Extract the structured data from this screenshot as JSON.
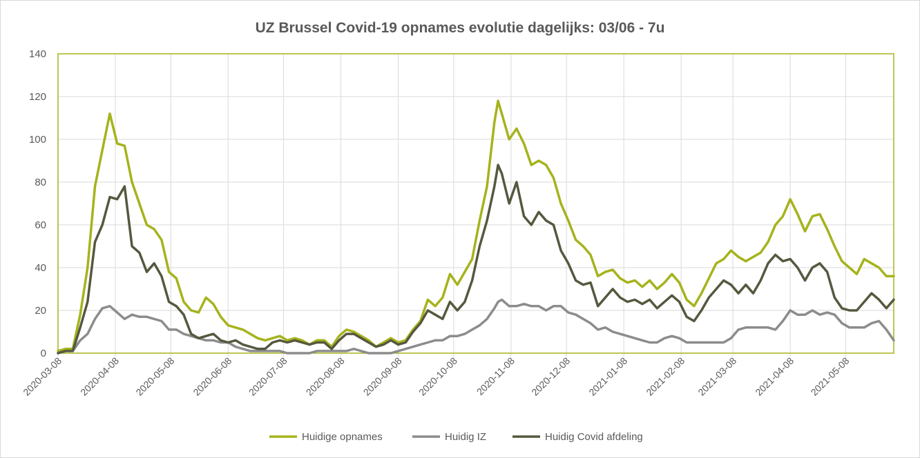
{
  "colors": {
    "text": "#595959",
    "grid": "#D9D9D9",
    "plot_border": "#A5B31C"
  },
  "chart_data": {
    "type": "line",
    "title": "UZ Brussel Covid-19 opnames evolutie dagelijks: 03/06 - 7u",
    "xlim": [
      "2020-03-08",
      "2021-06-03"
    ],
    "ylim": [
      0,
      140
    ],
    "yticks": [
      0,
      20,
      40,
      60,
      80,
      100,
      120,
      140
    ],
    "xticks": [
      "2020-03-08",
      "2020-04-08",
      "2020-05-08",
      "2020-06-08",
      "2020-07-08",
      "2020-08-08",
      "2020-09-08",
      "2020-10-08",
      "2020-11-08",
      "2020-12-08",
      "2021-01-08",
      "2021-02-08",
      "2021-03-08",
      "2021-04-08",
      "2021-05-08"
    ],
    "grid": true,
    "legend": "bottom",
    "x": [
      "2020-03-08",
      "2020-03-12",
      "2020-03-16",
      "2020-03-20",
      "2020-03-24",
      "2020-03-28",
      "2020-04-01",
      "2020-04-05",
      "2020-04-09",
      "2020-04-13",
      "2020-04-17",
      "2020-04-21",
      "2020-04-25",
      "2020-04-29",
      "2020-05-03",
      "2020-05-07",
      "2020-05-11",
      "2020-05-15",
      "2020-05-19",
      "2020-05-23",
      "2020-05-27",
      "2020-05-31",
      "2020-06-04",
      "2020-06-08",
      "2020-06-12",
      "2020-06-16",
      "2020-06-20",
      "2020-06-24",
      "2020-06-28",
      "2020-07-02",
      "2020-07-06",
      "2020-07-10",
      "2020-07-14",
      "2020-07-18",
      "2020-07-22",
      "2020-07-26",
      "2020-07-30",
      "2020-08-03",
      "2020-08-07",
      "2020-08-11",
      "2020-08-15",
      "2020-08-19",
      "2020-08-23",
      "2020-08-27",
      "2020-08-31",
      "2020-09-04",
      "2020-09-08",
      "2020-09-12",
      "2020-09-16",
      "2020-09-20",
      "2020-09-24",
      "2020-09-28",
      "2020-10-02",
      "2020-10-06",
      "2020-10-10",
      "2020-10-14",
      "2020-10-18",
      "2020-10-22",
      "2020-10-26",
      "2020-10-30",
      "2020-11-01",
      "2020-11-03",
      "2020-11-07",
      "2020-11-11",
      "2020-11-15",
      "2020-11-19",
      "2020-11-23",
      "2020-11-27",
      "2020-12-01",
      "2020-12-05",
      "2020-12-09",
      "2020-12-13",
      "2020-12-17",
      "2020-12-21",
      "2020-12-25",
      "2020-12-29",
      "2021-01-02",
      "2021-01-06",
      "2021-01-10",
      "2021-01-14",
      "2021-01-18",
      "2021-01-22",
      "2021-01-26",
      "2021-01-30",
      "2021-02-03",
      "2021-02-07",
      "2021-02-11",
      "2021-02-15",
      "2021-02-19",
      "2021-02-23",
      "2021-02-27",
      "2021-03-03",
      "2021-03-07",
      "2021-03-11",
      "2021-03-15",
      "2021-03-19",
      "2021-03-23",
      "2021-03-27",
      "2021-03-31",
      "2021-04-04",
      "2021-04-08",
      "2021-04-12",
      "2021-04-16",
      "2021-04-20",
      "2021-04-24",
      "2021-04-28",
      "2021-05-02",
      "2021-05-06",
      "2021-05-10",
      "2021-05-14",
      "2021-05-18",
      "2021-05-22",
      "2021-05-26",
      "2021-05-30",
      "2021-06-03"
    ],
    "series": [
      {
        "name": "Huidige opnames",
        "color": "#A5B31C",
        "values": [
          1,
          2,
          2,
          18,
          40,
          78,
          95,
          112,
          98,
          97,
          80,
          70,
          60,
          58,
          53,
          38,
          35,
          24,
          20,
          19,
          26,
          23,
          17,
          13,
          12,
          11,
          9,
          7,
          6,
          7,
          8,
          6,
          7,
          6,
          4,
          6,
          6,
          3,
          8,
          11,
          10,
          8,
          6,
          3,
          5,
          7,
          5,
          6,
          11,
          15,
          25,
          22,
          26,
          37,
          32,
          38,
          44,
          62,
          78,
          108,
          118,
          112,
          100,
          105,
          98,
          88,
          90,
          88,
          82,
          70,
          62,
          53,
          50,
          46,
          36,
          38,
          39,
          35,
          33,
          34,
          31,
          34,
          30,
          33,
          37,
          33,
          25,
          22,
          28,
          35,
          42,
          44,
          48,
          45,
          43,
          45,
          47,
          52,
          60,
          64,
          72,
          65,
          57,
          64,
          65,
          58,
          50,
          43,
          40,
          37,
          44,
          42,
          40,
          36,
          36
        ]
      },
      {
        "name": "Huidig IZ",
        "color": "#8C8C8C",
        "values": [
          0,
          1,
          1,
          6,
          9,
          16,
          21,
          22,
          19,
          16,
          18,
          17,
          17,
          16,
          15,
          11,
          11,
          9,
          8,
          7,
          6,
          6,
          5,
          5,
          3,
          2,
          1,
          1,
          1,
          1,
          1,
          0,
          0,
          0,
          0,
          1,
          1,
          1,
          1,
          1,
          2,
          1,
          0,
          0,
          0,
          0,
          1,
          2,
          3,
          4,
          5,
          6,
          6,
          8,
          8,
          9,
          11,
          13,
          16,
          21,
          24,
          25,
          22,
          22,
          23,
          22,
          22,
          20,
          22,
          22,
          19,
          18,
          16,
          14,
          11,
          12,
          10,
          9,
          8,
          7,
          6,
          5,
          5,
          7,
          8,
          7,
          5,
          5,
          5,
          5,
          5,
          5,
          7,
          11,
          12,
          12,
          12,
          12,
          11,
          15,
          20,
          18,
          18,
          20,
          18,
          19,
          18,
          14,
          12,
          12,
          12,
          14,
          15,
          11,
          6
        ]
      },
      {
        "name": "Huidig Covid afdeling",
        "color": "#56583F",
        "values": [
          0,
          1,
          1,
          12,
          24,
          52,
          60,
          73,
          72,
          78,
          50,
          47,
          38,
          42,
          36,
          24,
          22,
          18,
          9,
          7,
          8,
          9,
          6,
          5,
          6,
          4,
          3,
          2,
          2,
          5,
          6,
          5,
          6,
          5,
          4,
          5,
          5,
          2,
          6,
          9,
          9,
          7,
          5,
          3,
          4,
          6,
          4,
          5,
          10,
          14,
          20,
          18,
          16,
          24,
          20,
          24,
          34,
          50,
          62,
          78,
          88,
          84,
          70,
          80,
          64,
          60,
          66,
          62,
          60,
          48,
          42,
          34,
          32,
          33,
          22,
          26,
          30,
          26,
          24,
          25,
          23,
          25,
          21,
          24,
          27,
          24,
          17,
          15,
          20,
          26,
          30,
          34,
          32,
          28,
          32,
          28,
          34,
          42,
          46,
          43,
          44,
          40,
          34,
          40,
          42,
          38,
          26,
          21,
          20,
          20,
          24,
          28,
          25,
          21,
          25
        ]
      }
    ]
  }
}
